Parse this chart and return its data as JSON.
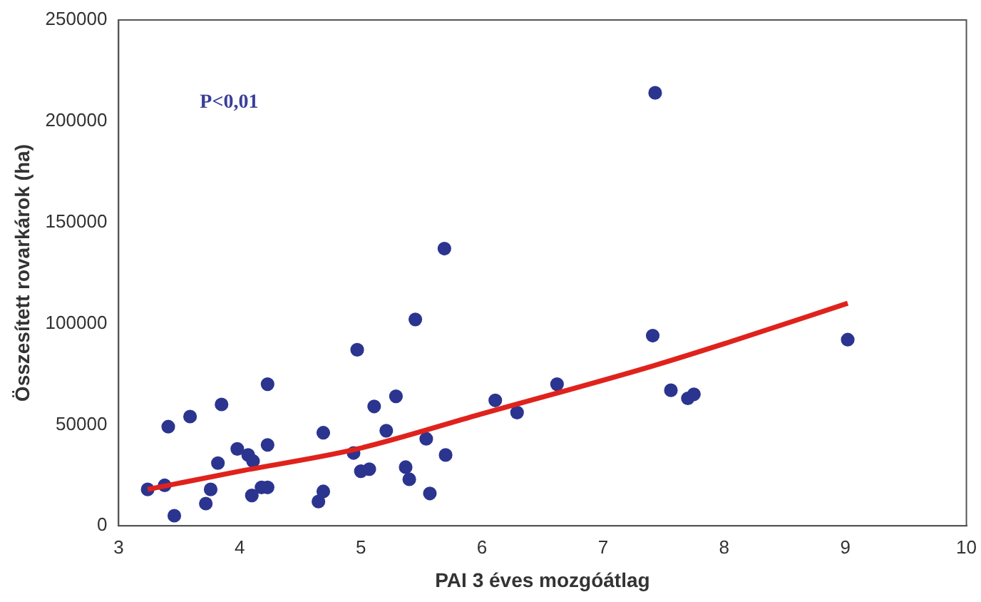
{
  "chart_data": {
    "type": "scatter",
    "xlabel": "PAI 3 éves mozgóátlag",
    "ylabel": "Összesített rovarkárok (ha)",
    "annotations": [
      "P<0,01"
    ],
    "xlim": [
      3,
      10
    ],
    "xticks": [
      3,
      4,
      5,
      6,
      7,
      8,
      9,
      10
    ],
    "ylim": [
      0,
      250000
    ],
    "yticks": [
      0,
      50000,
      100000,
      150000,
      200000,
      250000
    ],
    "grid": false,
    "legend": false,
    "marker": "circle",
    "series": [
      {
        "type": "scatter",
        "color": "#2b3590",
        "x": [
          3.24,
          3.38,
          3.41,
          3.46,
          3.59,
          3.72,
          3.76,
          3.82,
          3.85,
          3.98,
          4.07,
          4.1,
          4.11,
          4.18,
          4.23,
          4.23,
          4.23,
          4.65,
          4.69,
          4.69,
          4.94,
          4.97,
          5.0,
          5.07,
          5.11,
          5.21,
          5.29,
          5.37,
          5.4,
          5.45,
          5.54,
          5.57,
          5.7,
          5.69,
          6.11,
          6.29,
          6.62,
          7.43,
          7.41,
          7.56,
          7.7,
          7.75,
          9.02
        ],
        "values": [
          18000,
          20000,
          49000,
          5000,
          54000,
          11000,
          18000,
          31000,
          60000,
          38000,
          35000,
          15000,
          32000,
          19000,
          19000,
          40000,
          70000,
          12000,
          17000,
          46000,
          36000,
          87000,
          27000,
          28000,
          59000,
          47000,
          64000,
          29000,
          23000,
          102000,
          43000,
          16000,
          35000,
          137000,
          62000,
          56000,
          70000,
          214000,
          94000,
          67000,
          63000,
          65000,
          92000
        ]
      },
      {
        "type": "line",
        "color": "#e0221c",
        "marker": "none",
        "x": [
          3.24,
          4.0,
          4.97,
          5.98,
          7.41,
          8.0,
          9.02
        ],
        "values": [
          18000,
          27000,
          38000,
          55000,
          79000,
          90000,
          110000
        ]
      }
    ]
  }
}
